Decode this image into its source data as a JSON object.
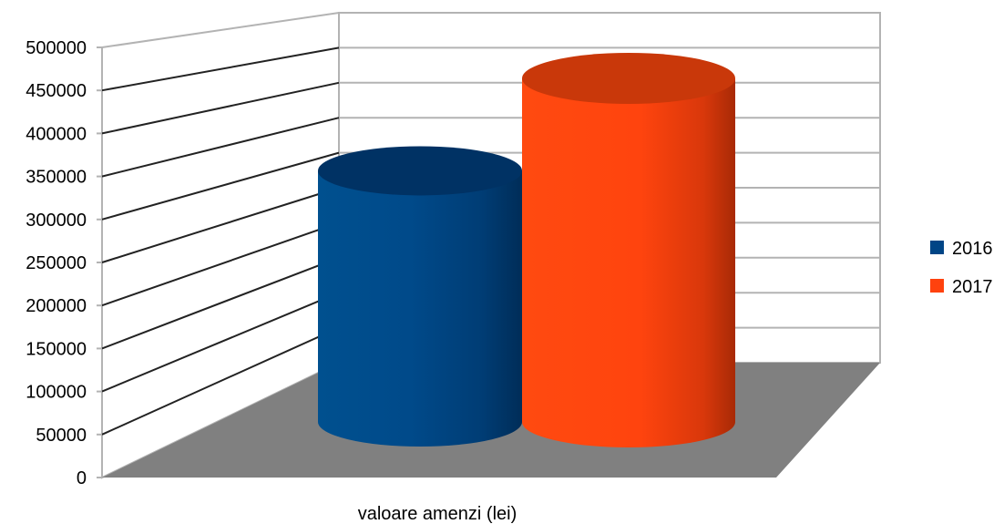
{
  "chart_data": {
    "type": "bar",
    "style": "3d-cylinder",
    "categories": [
      "valoare amenzi (lei)"
    ],
    "series": [
      {
        "name": "2016",
        "values": [
          345000
        ],
        "color": "#004586"
      },
      {
        "name": "2017",
        "values": [
          472000
        ],
        "color": "#ff420e"
      }
    ],
    "ylim": [
      0,
      500000
    ],
    "yticks": [
      0,
      50000,
      100000,
      150000,
      200000,
      250000,
      300000,
      350000,
      400000,
      450000,
      500000
    ],
    "grid": true,
    "legend_position": "right",
    "floor_color": "#808080"
  }
}
